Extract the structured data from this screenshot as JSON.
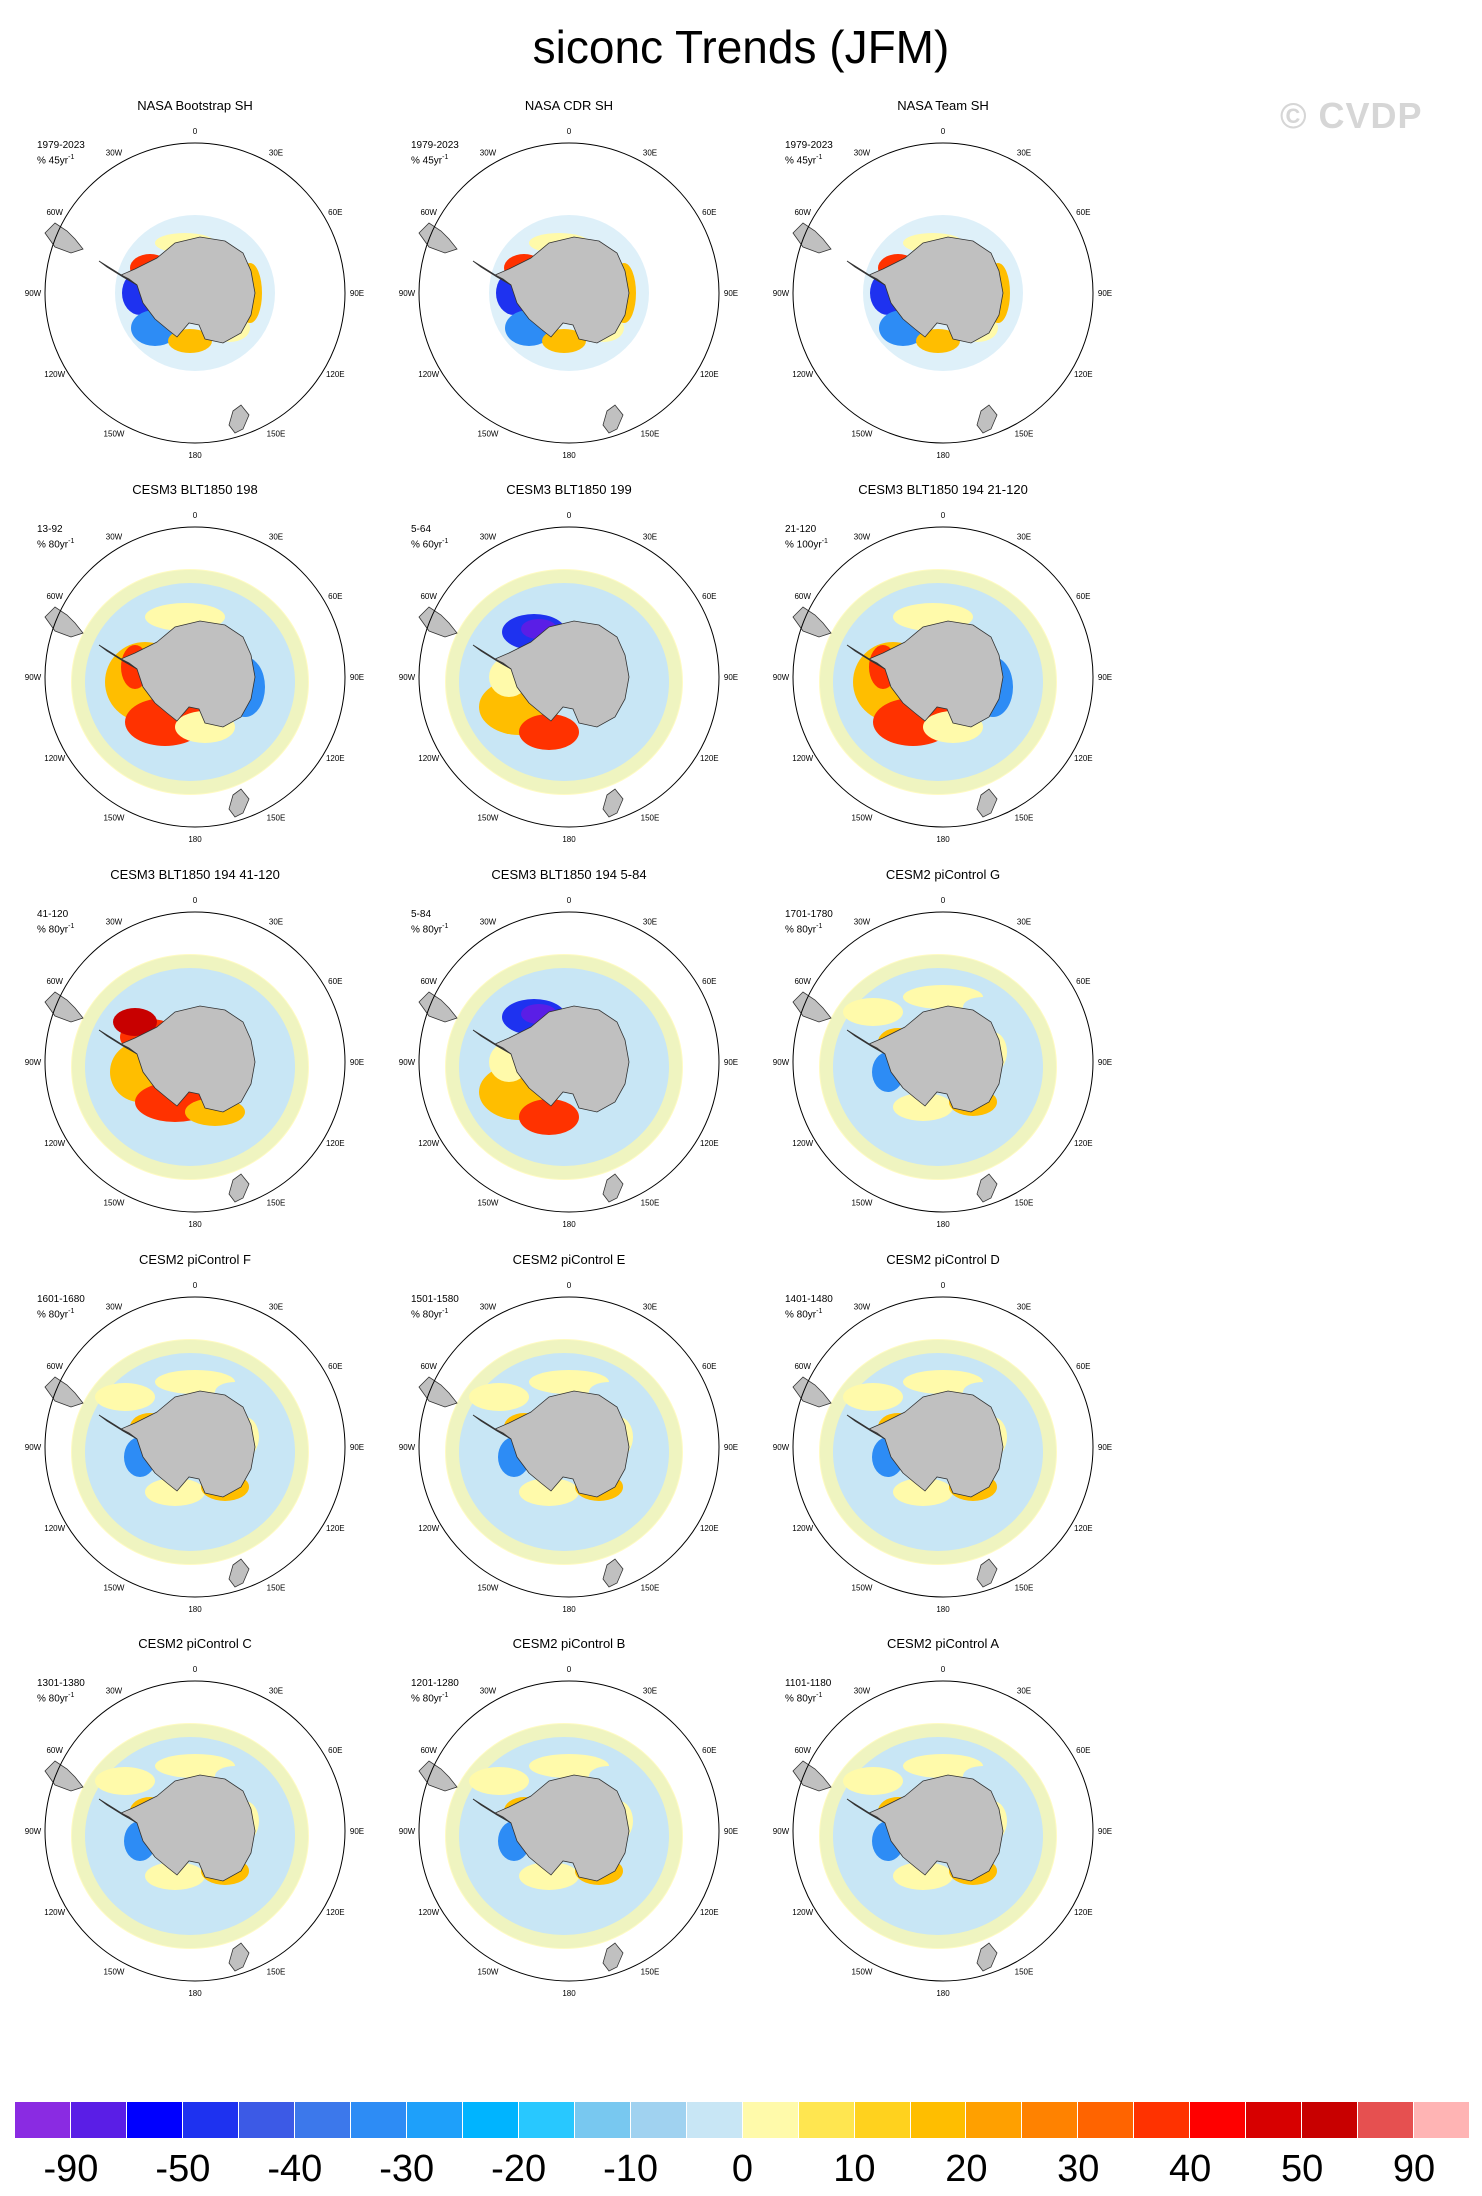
{
  "title": "siconc Trends (JFM)",
  "watermark": "© CVDP",
  "longitude_labels": [
    "0",
    "30E",
    "60E",
    "90E",
    "120E",
    "150E",
    "180",
    "150W",
    "120W",
    "90W",
    "60W",
    "30W"
  ],
  "panels": [
    {
      "name": "NASA Bootstrap SH",
      "years": "1979-2023",
      "units": "% 45yr",
      "unit_exp": "-1",
      "pattern": "obs"
    },
    {
      "name": "NASA CDR SH",
      "years": "1979-2023",
      "units": "% 45yr",
      "unit_exp": "-1",
      "pattern": "obs"
    },
    {
      "name": "NASA Team SH",
      "years": "1979-2023",
      "units": "% 45yr",
      "unit_exp": "-1",
      "pattern": "obs"
    },
    {
      "name": "CESM3 BLT1850 198",
      "years": "13-92",
      "units": "% 80yr",
      "unit_exp": "-1",
      "pattern": "warm"
    },
    {
      "name": "CESM3 BLT1850 199",
      "years": "5-64",
      "units": "% 60yr",
      "unit_exp": "-1",
      "pattern": "mixed"
    },
    {
      "name": "CESM3 BLT1850 194 21-120",
      "years": "21-120",
      "units": "% 100yr",
      "unit_exp": "-1",
      "pattern": "warm"
    },
    {
      "name": "CESM3 BLT1850 194 41-120",
      "years": "41-120",
      "units": "% 80yr",
      "unit_exp": "-1",
      "pattern": "strongwarm"
    },
    {
      "name": "CESM3 BLT1850 194 5-84",
      "years": "5-84",
      "units": "% 80yr",
      "unit_exp": "-1",
      "pattern": "mixed"
    },
    {
      "name": "CESM2 piControl G",
      "years": "1701-1780",
      "units": "% 80yr",
      "unit_exp": "-1",
      "pattern": "weak"
    },
    {
      "name": "CESM2 piControl F",
      "years": "1601-1680",
      "units": "% 80yr",
      "unit_exp": "-1",
      "pattern": "weak"
    },
    {
      "name": "CESM2 piControl E",
      "years": "1501-1580",
      "units": "% 80yr",
      "unit_exp": "-1",
      "pattern": "weak"
    },
    {
      "name": "CESM2 piControl D",
      "years": "1401-1480",
      "units": "% 80yr",
      "unit_exp": "-1",
      "pattern": "weak"
    },
    {
      "name": "CESM2 piControl C",
      "years": "1301-1380",
      "units": "% 80yr",
      "unit_exp": "-1",
      "pattern": "weak"
    },
    {
      "name": "CESM2 piControl B",
      "years": "1201-1280",
      "units": "% 80yr",
      "unit_exp": "-1",
      "pattern": "weak"
    },
    {
      "name": "CESM2 piControl A",
      "years": "1101-1180",
      "units": "% 80yr",
      "unit_exp": "-1",
      "pattern": "weak"
    }
  ],
  "colorbar": {
    "colors": [
      "#8a2be2",
      "#5a1ee6",
      "#0000ff",
      "#1e32f0",
      "#3c5ae6",
      "#3c78eb",
      "#2d8cf5",
      "#1ea0fa",
      "#00b4ff",
      "#28c8ff",
      "#78c8f0",
      "#a0d2f0",
      "#c8e6f5",
      "#fffaaa",
      "#ffe650",
      "#ffd21e",
      "#ffbe00",
      "#ffa000",
      "#ff8200",
      "#ff6400",
      "#ff3200",
      "#ff0000",
      "#d70000",
      "#c80000",
      "#e65050",
      "#ffb4b4"
    ],
    "labels": [
      "-90",
      "-50",
      "-40",
      "-30",
      "-20",
      "-10",
      "0",
      "10",
      "20",
      "30",
      "40",
      "50",
      "90"
    ]
  },
  "colors": {
    "land": "#c0c0c0",
    "ice_background": "#c8e6f5",
    "warm_light": "#fffaaa",
    "warm_mid": "#ffbe00",
    "warm_strong": "#ff3200",
    "cold_mid": "#2d8cf5",
    "cold_strong": "#1e32f0",
    "cold_extreme": "#5a1ee6"
  }
}
